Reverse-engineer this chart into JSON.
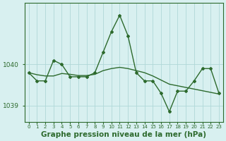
{
  "title": "Graphe pression niveau de la mer (hPa)",
  "x_labels": [
    "0",
    "1",
    "2",
    "3",
    "4",
    "5",
    "6",
    "7",
    "8",
    "9",
    "10",
    "11",
    "12",
    "13",
    "14",
    "15",
    "16",
    "17",
    "18",
    "19",
    "20",
    "21",
    "22",
    "23"
  ],
  "x_values": [
    0,
    1,
    2,
    3,
    4,
    5,
    6,
    7,
    8,
    9,
    10,
    11,
    12,
    13,
    14,
    15,
    16,
    17,
    18,
    19,
    20,
    21,
    22,
    23
  ],
  "y_main": [
    1039.8,
    1039.6,
    1039.6,
    1040.1,
    1040.0,
    1039.7,
    1039.7,
    1039.7,
    1039.8,
    1040.3,
    1040.8,
    1041.2,
    1040.7,
    1039.8,
    1039.6,
    1039.6,
    1039.3,
    1038.85,
    1039.35,
    1039.35,
    1039.6,
    1039.9,
    1039.9,
    1039.3
  ],
  "y_trend": [
    1039.8,
    1039.75,
    1039.72,
    1039.72,
    1039.78,
    1039.76,
    1039.73,
    1039.73,
    1039.76,
    1039.85,
    1039.9,
    1039.93,
    1039.9,
    1039.85,
    1039.8,
    1039.72,
    1039.62,
    1039.52,
    1039.48,
    1039.44,
    1039.4,
    1039.36,
    1039.32,
    1039.28
  ],
  "ylim": [
    1038.6,
    1041.5
  ],
  "yticks": [
    1039,
    1040
  ],
  "line_color": "#2d6a2d",
  "trend_color": "#2d6a2d",
  "bg_color": "#d8f0f0",
  "grid_color": "#b0d8d8",
  "title_color": "#2d6a2d",
  "title_fontsize": 7.5,
  "tick_fontsize": 6.5
}
